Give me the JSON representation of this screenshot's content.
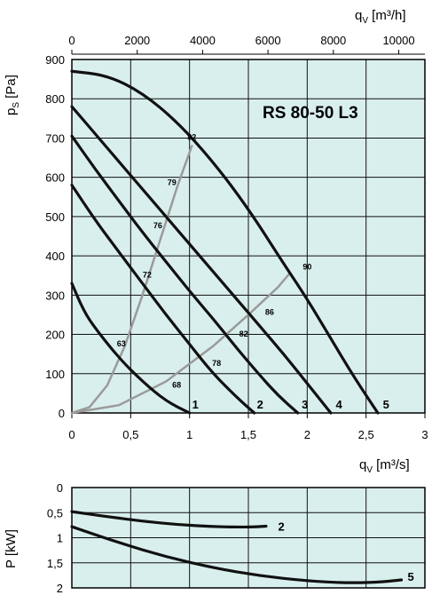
{
  "chart_data": [
    {
      "type": "line",
      "title": "RS  80-50  L3",
      "xlabel": "q",
      "xlabel_sub": "V",
      "xlabel_unit": "[m3/s]",
      "xlim": [
        0,
        3
      ],
      "x_ticks": [
        "0",
        "0,5",
        "1",
        "1,5",
        "2",
        "2,5",
        "3"
      ],
      "x2label": "q",
      "x2label_sub": "V",
      "x2label_unit": "[m3/h]",
      "x2lim": [
        0,
        10800
      ],
      "x2_ticks": [
        "0",
        "2000",
        "4000",
        "6000",
        "8000",
        "10000"
      ],
      "ylabel": "p",
      "ylabel_sub": "S",
      "ylabel_unit": "[Pa]",
      "ylim": [
        0,
        900
      ],
      "y_ticks": [
        "0",
        "100",
        "200",
        "300",
        "400",
        "500",
        "600",
        "700",
        "800",
        "900"
      ],
      "grid": true,
      "series": [
        {
          "name": "1",
          "x": [
            0,
            0.1,
            0.2,
            0.4,
            0.6,
            0.8,
            1.0
          ],
          "y": [
            330,
            260,
            215,
            140,
            80,
            30,
            0
          ]
        },
        {
          "name": "2",
          "x": [
            0,
            0.2,
            0.4,
            0.6,
            0.8,
            1.0,
            1.2,
            1.4,
            1.55
          ],
          "y": [
            580,
            490,
            410,
            330,
            250,
            175,
            100,
            40,
            0
          ]
        },
        {
          "name": "3",
          "x": [
            0,
            0.2,
            0.4,
            0.6,
            0.8,
            1.0,
            1.2,
            1.4,
            1.6,
            1.75,
            1.92
          ],
          "y": [
            705,
            620,
            540,
            460,
            385,
            310,
            240,
            165,
            95,
            45,
            0
          ]
        },
        {
          "name": "4",
          "x": [
            0,
            0.2,
            0.4,
            0.6,
            0.8,
            1.0,
            1.2,
            1.4,
            1.6,
            1.8,
            2.0,
            2.2
          ],
          "y": [
            780,
            710,
            640,
            570,
            500,
            430,
            360,
            290,
            220,
            150,
            75,
            0
          ]
        },
        {
          "name": "5",
          "x": [
            0,
            0.3,
            0.6,
            0.9,
            1.2,
            1.5,
            1.8,
            2.0,
            2.2,
            2.4,
            2.6
          ],
          "y": [
            870,
            860,
            815,
            740,
            640,
            520,
            380,
            290,
            190,
            90,
            0
          ]
        }
      ],
      "efficiency_curves": [
        {
          "x": [
            0,
            0.15,
            0.3,
            0.45,
            0.6,
            0.75,
            0.9,
            1.02
          ],
          "y": [
            0,
            15,
            70,
            170,
            300,
            440,
            580,
            680
          ]
        },
        {
          "x": [
            0,
            0.4,
            0.8,
            1.2,
            1.5,
            1.75,
            1.85
          ],
          "y": [
            0,
            20,
            80,
            170,
            250,
            320,
            355
          ]
        }
      ],
      "efficiency_labels": [
        {
          "text": "82",
          "x": 1.02,
          "y": 695
        },
        {
          "text": "79",
          "x": 0.85,
          "y": 580
        },
        {
          "text": "76",
          "x": 0.73,
          "y": 470
        },
        {
          "text": "72",
          "x": 0.64,
          "y": 345
        },
        {
          "text": "63",
          "x": 0.42,
          "y": 170
        },
        {
          "text": "68",
          "x": 0.89,
          "y": 65
        },
        {
          "text": "78",
          "x": 1.23,
          "y": 120
        },
        {
          "text": "82",
          "x": 1.46,
          "y": 195
        },
        {
          "text": "86",
          "x": 1.68,
          "y": 250
        },
        {
          "text": "90",
          "x": 2.0,
          "y": 365
        }
      ],
      "curve_labels": [
        {
          "text": "1",
          "x": 1.05,
          "y": 20
        },
        {
          "text": "2",
          "x": 1.6,
          "y": 20
        },
        {
          "text": "3",
          "x": 1.98,
          "y": 20
        },
        {
          "text": "4",
          "x": 2.27,
          "y": 20
        },
        {
          "text": "5",
          "x": 2.67,
          "y": 20
        }
      ],
      "colors": {
        "background": "#d9efed",
        "curve": "#111111",
        "efficiency": "#9a9a9a",
        "grid": "#111111"
      }
    },
    {
      "type": "line",
      "xlabel": "q",
      "xlabel_sub": "V",
      "xlabel_unit": "[m3/s]",
      "xlim": [
        0,
        3
      ],
      "ylabel": "P",
      "ylabel_unit": "[kW]",
      "ylim": [
        0,
        2
      ],
      "y_ticks": [
        "0",
        "0,5",
        "1",
        "1,5",
        "2"
      ],
      "y_inverted": true,
      "grid": true,
      "series": [
        {
          "name": "2",
          "x": [
            0,
            0.3,
            0.6,
            0.9,
            1.2,
            1.5,
            1.65
          ],
          "y": [
            0.48,
            0.58,
            0.67,
            0.74,
            0.78,
            0.79,
            0.77
          ]
        },
        {
          "name": "5",
          "x": [
            0,
            0.4,
            0.8,
            1.2,
            1.6,
            2.0,
            2.3,
            2.6,
            2.8
          ],
          "y": [
            0.78,
            1.1,
            1.38,
            1.6,
            1.76,
            1.86,
            1.9,
            1.89,
            1.84
          ]
        }
      ],
      "curve_labels": [
        {
          "text": "2",
          "x": 1.78,
          "y": 0.77
        },
        {
          "text": "5",
          "x": 2.88,
          "y": 1.77
        }
      ],
      "colors": {
        "background": "#d9efed",
        "curve": "#111111",
        "grid": "#111111"
      }
    }
  ]
}
